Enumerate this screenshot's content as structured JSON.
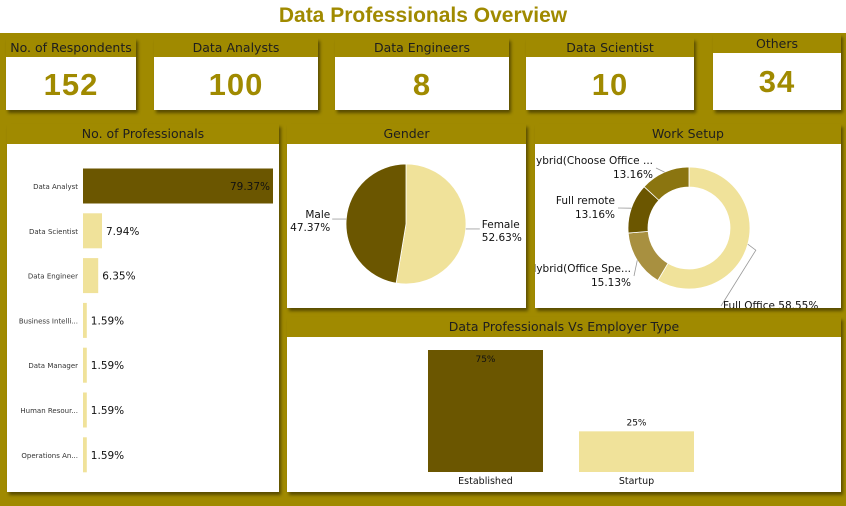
{
  "page": {
    "title": "Data Professionals Overview"
  },
  "kpis": [
    {
      "label": "No. of Respondents",
      "value": "152"
    },
    {
      "label": "Data Analysts",
      "value": "100"
    },
    {
      "label": "Data Engineers",
      "value": "8"
    },
    {
      "label": "Data Scientist",
      "value": "10"
    },
    {
      "label": "Others",
      "value": "34"
    }
  ],
  "colors": {
    "gold": "#a08a00",
    "dark": "#6b5600",
    "mid": "#a89040",
    "light": "#f0e29a",
    "white": "#ffffff"
  },
  "chart_data": [
    {
      "id": "professionals",
      "type": "bar",
      "orientation": "horizontal",
      "title": "No. of Professionals",
      "categories": [
        "Data Analyst",
        "Data Scientist",
        "Data Engineer",
        "Business Intelli...",
        "Data Manager",
        "Human Resour...",
        "Operations An..."
      ],
      "values": [
        79.37,
        7.94,
        6.35,
        1.59,
        1.59,
        1.59,
        1.59
      ],
      "labels": [
        "79.37%",
        "7.94%",
        "6.35%",
        "1.59%",
        "1.59%",
        "1.59%",
        "1.59%"
      ],
      "xlim": [
        0,
        79.37
      ]
    },
    {
      "id": "gender",
      "type": "pie",
      "title": "Gender",
      "categories": [
        "Female",
        "Male"
      ],
      "values": [
        52.63,
        47.37
      ],
      "labels": [
        "52.63%",
        "47.37%"
      ]
    },
    {
      "id": "work_setup",
      "type": "pie",
      "variant": "donut",
      "title": "Work Setup",
      "categories": [
        "Full Office",
        "Hybrid(Office Spe...",
        "Full remote",
        "Hybrid(Choose Office ..."
      ],
      "values": [
        58.55,
        15.13,
        13.16,
        13.16
      ],
      "labels": [
        "58.55%",
        "15.13%",
        "13.16%",
        "13.16%"
      ]
    },
    {
      "id": "employer_type",
      "type": "bar",
      "title": "Data Professionals Vs Employer Type",
      "categories": [
        "Established",
        "Startup"
      ],
      "values": [
        75,
        25
      ],
      "labels": [
        "75%",
        "25%"
      ],
      "ylim": [
        0,
        75
      ]
    }
  ]
}
